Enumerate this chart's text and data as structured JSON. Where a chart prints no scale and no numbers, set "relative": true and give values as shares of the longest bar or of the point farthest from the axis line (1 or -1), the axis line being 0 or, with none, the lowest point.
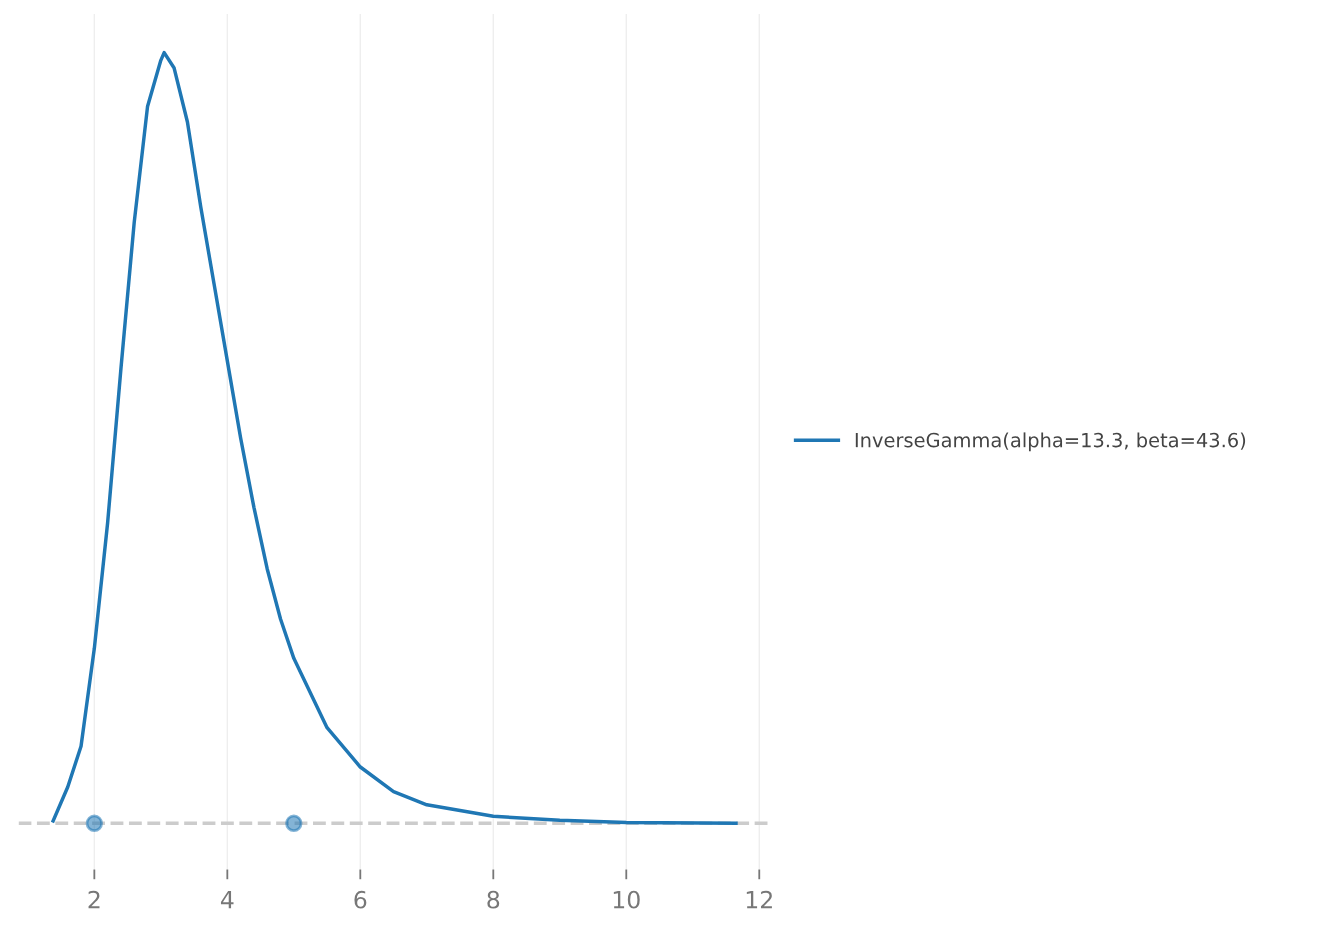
{
  "chart_data": {
    "type": "line",
    "relative": true,
    "xlim": [
      0.86,
      12.17
    ],
    "xticks": [
      2,
      4,
      6,
      8,
      10,
      12
    ],
    "grid": "x",
    "legend": "right",
    "tick_labels": "x",
    "series": [
      {
        "name": "InverseGamma(alpha=13.3, beta=43.6)",
        "color": "#1f77b4",
        "marker": "none",
        "x": [
          1.38,
          1.6,
          1.8,
          2.0,
          2.2,
          2.4,
          2.6,
          2.8,
          3.0,
          3.05,
          3.2,
          3.4,
          3.6,
          3.8,
          4.0,
          4.2,
          4.4,
          4.6,
          4.8,
          5.0,
          5.5,
          6.0,
          6.5,
          7.0,
          8.0,
          9.0,
          10.0,
          11.65
        ],
        "values": [
          0.003,
          0.047,
          0.1,
          0.227,
          0.39,
          0.59,
          0.78,
          0.93,
          0.99,
          1.0,
          0.98,
          0.91,
          0.8,
          0.7,
          0.6,
          0.5,
          0.41,
          0.33,
          0.265,
          0.214,
          0.124,
          0.073,
          0.041,
          0.024,
          0.009,
          0.004,
          0.001,
          0
        ]
      },
      {
        "type": "scatter",
        "color": "#1f77b4",
        "marker": "circle",
        "x": [
          2,
          5
        ],
        "values": [
          0,
          0
        ]
      }
    ],
    "ref_lines": [
      {
        "axis": "y",
        "value": 0,
        "color": "#cccccc",
        "line_style": "dashed"
      }
    ]
  }
}
